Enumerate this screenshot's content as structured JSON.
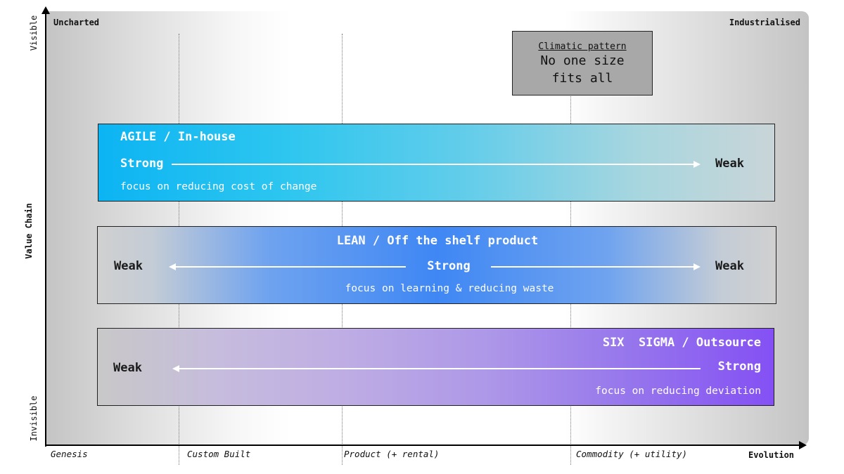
{
  "axes": {
    "y_label": "Value Chain",
    "y_top": "Visible",
    "y_bottom": "Invisible",
    "x_label": "Evolution"
  },
  "corners": {
    "top_left": "Uncharted",
    "top_right": "Industrialised"
  },
  "stages": [
    "Genesis",
    "Custom Built",
    "Product (+ rental)",
    "Commodity (+ utility)"
  ],
  "climatic": {
    "title": "Climatic pattern",
    "line1": "No one size",
    "line2": "fits all"
  },
  "bands": {
    "agile": {
      "title": "AGILE / In-house",
      "left": "Strong",
      "right": "Weak",
      "focus": "focus on reducing cost of change",
      "color": "#1ab8f0"
    },
    "lean": {
      "title": "LEAN / Off the shelf product",
      "left": "Weak",
      "center": "Strong",
      "right": "Weak",
      "focus": "focus on learning & reducing waste",
      "color": "#3a86f2"
    },
    "sixsigma": {
      "title": "SIX  SIGMA / Outsource",
      "left": "Weak",
      "right": "Strong",
      "focus": "focus on reducing deviation",
      "color": "#8a5af0"
    }
  }
}
